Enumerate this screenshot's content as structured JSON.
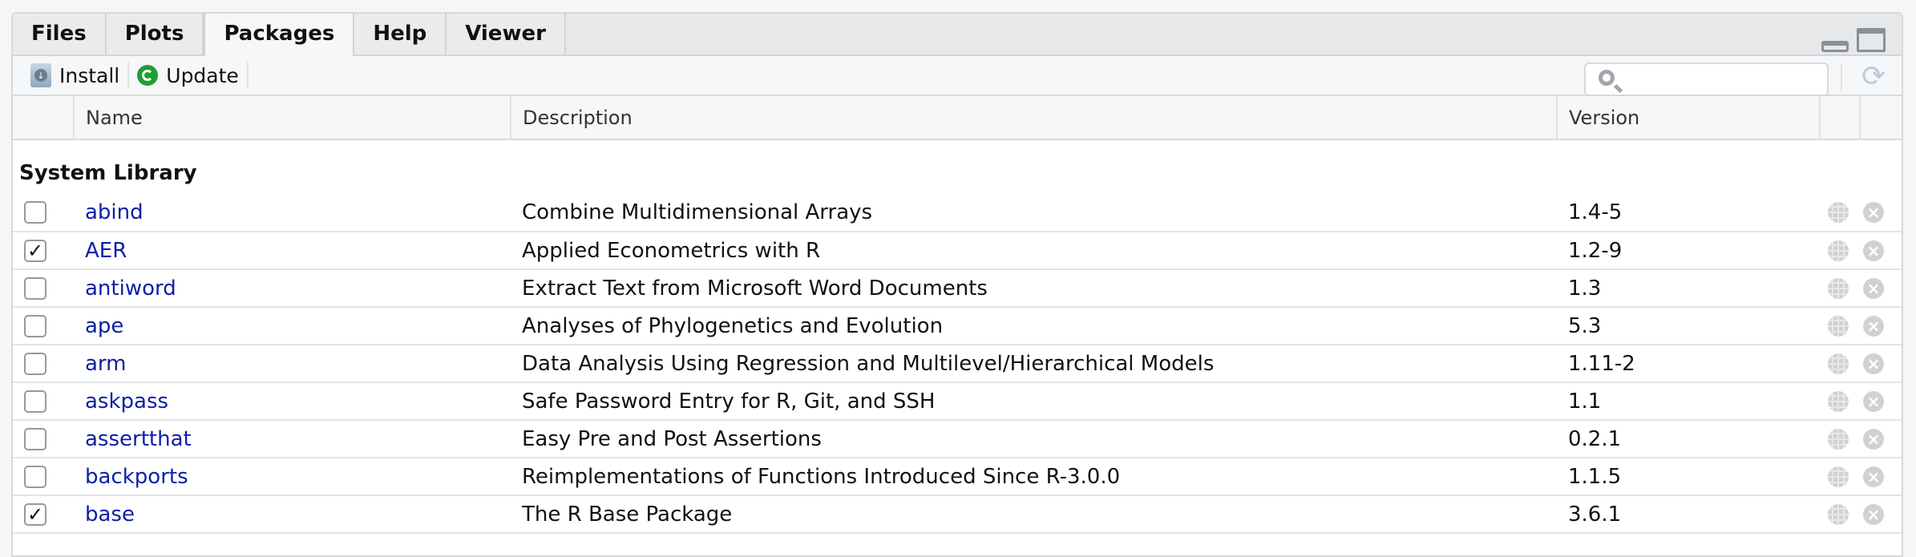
{
  "tabs": [
    {
      "label": "Files"
    },
    {
      "label": "Plots"
    },
    {
      "label": "Packages",
      "active": true
    },
    {
      "label": "Help"
    },
    {
      "label": "Viewer"
    }
  ],
  "toolbar": {
    "install_label": "Install",
    "update_label": "Update",
    "search_placeholder": "",
    "search_value": ""
  },
  "table": {
    "headers": {
      "name": "Name",
      "description": "Description",
      "version": "Version"
    },
    "section": "System Library",
    "rows": [
      {
        "name": "abind",
        "description": "Combine Multidimensional Arrays",
        "version": "1.4-5",
        "checked": false
      },
      {
        "name": "AER",
        "description": "Applied Econometrics with R",
        "version": "1.2-9",
        "checked": true
      },
      {
        "name": "antiword",
        "description": "Extract Text from Microsoft Word Documents",
        "version": "1.3",
        "checked": false
      },
      {
        "name": "ape",
        "description": "Analyses of Phylogenetics and Evolution",
        "version": "5.3",
        "checked": false
      },
      {
        "name": "arm",
        "description": "Data Analysis Using Regression and Multilevel/Hierarchical Models",
        "version": "1.11-2",
        "checked": false
      },
      {
        "name": "askpass",
        "description": "Safe Password Entry for R, Git, and SSH",
        "version": "1.1",
        "checked": false
      },
      {
        "name": "assertthat",
        "description": "Easy Pre and Post Assertions",
        "version": "0.2.1",
        "checked": false
      },
      {
        "name": "backports",
        "description": "Reimplementations of Functions Introduced Since R-3.0.0",
        "version": "1.1.5",
        "checked": false
      },
      {
        "name": "base",
        "description": "The R Base Package",
        "version": "3.6.1",
        "checked": true
      }
    ]
  },
  "colors": {
    "link": "#0b1fa8",
    "update_icon": "#1f9e34"
  }
}
